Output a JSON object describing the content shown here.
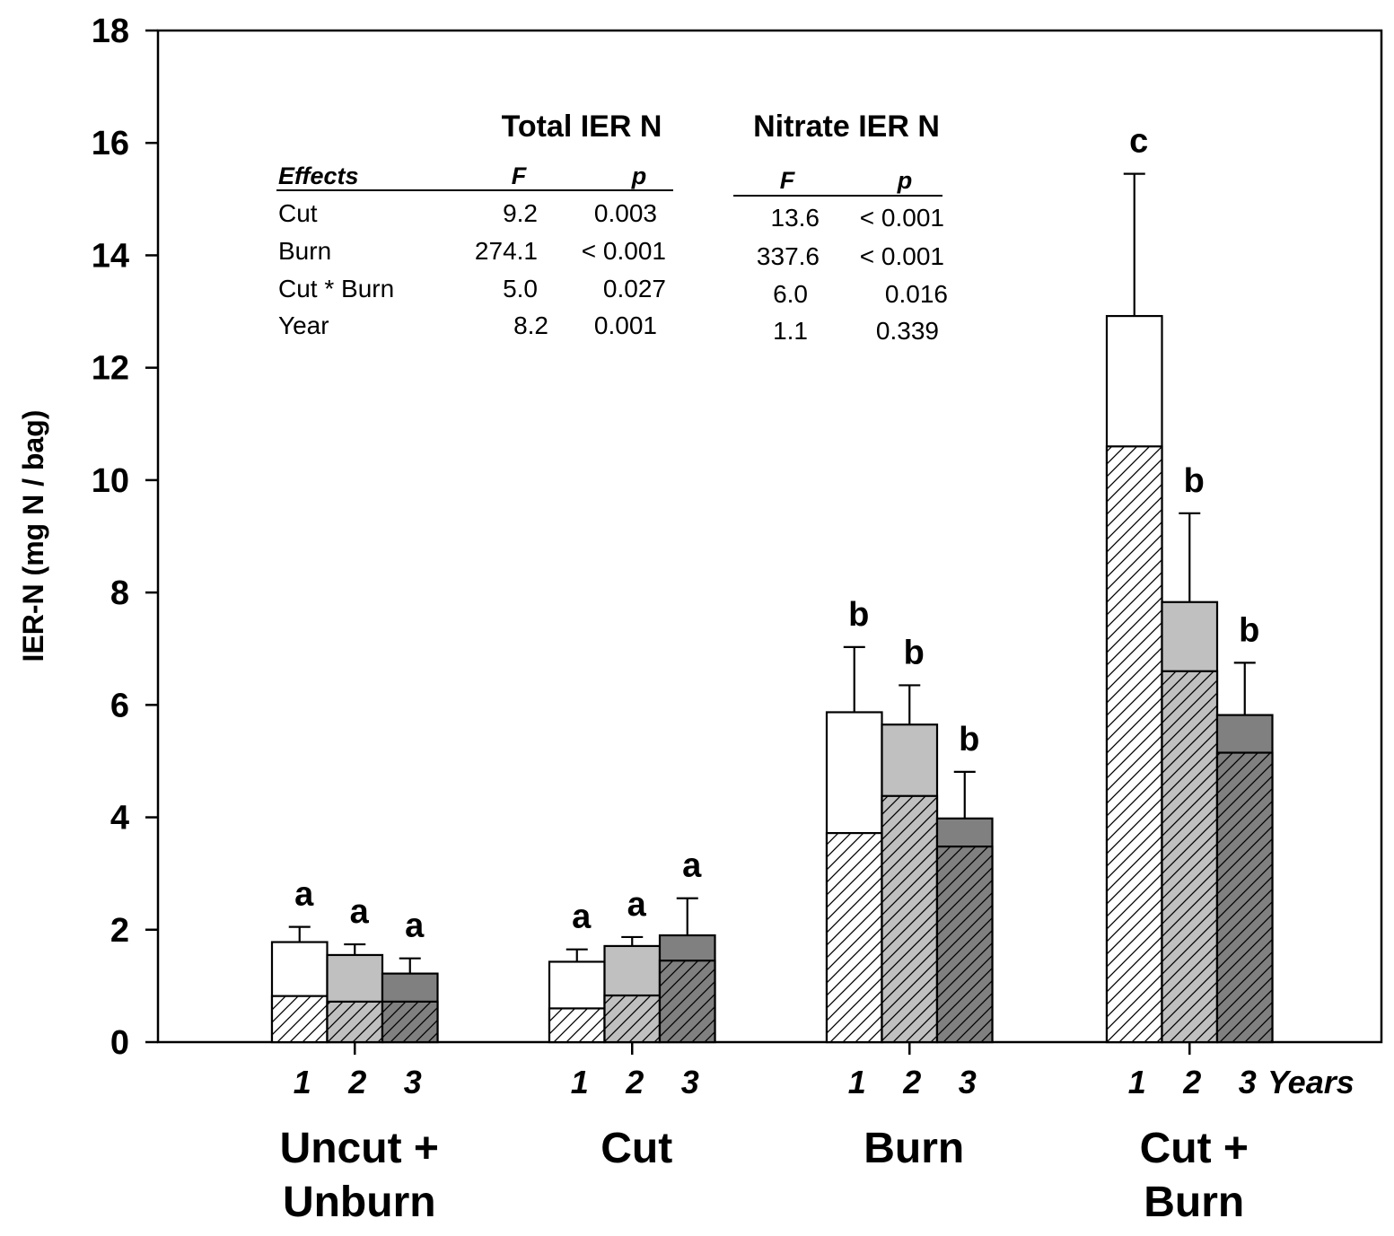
{
  "chart_data": {
    "type": "bar",
    "subtype": "stacked-with-error-bars",
    "ylabel": "IER-N (mg N / bag)",
    "ylim": [
      0,
      18
    ],
    "yticks": [
      0,
      2,
      4,
      6,
      8,
      10,
      12,
      14,
      16,
      18
    ],
    "year_suffix": "Years",
    "groups": [
      {
        "name": "Uncut +\nUnburn",
        "name_lines": [
          "Uncut +",
          "Unburn"
        ],
        "years": [
          {
            "year": "1",
            "total": 1.78,
            "nitrate": 0.82,
            "error": 0.27,
            "letter": "a"
          },
          {
            "year": "2",
            "total": 1.55,
            "nitrate": 0.72,
            "error": 0.19,
            "letter": "a"
          },
          {
            "year": "3",
            "total": 1.22,
            "nitrate": 0.72,
            "error": 0.27,
            "letter": "a"
          }
        ]
      },
      {
        "name": "Cut",
        "name_lines": [
          "Cut"
        ],
        "years": [
          {
            "year": "1",
            "total": 1.43,
            "nitrate": 0.6,
            "error": 0.22,
            "letter": "a"
          },
          {
            "year": "2",
            "total": 1.71,
            "nitrate": 0.83,
            "error": 0.16,
            "letter": "a"
          },
          {
            "year": "3",
            "total": 1.9,
            "nitrate": 1.45,
            "error": 0.66,
            "letter": "a"
          }
        ]
      },
      {
        "name": "Burn",
        "name_lines": [
          "Burn"
        ],
        "years": [
          {
            "year": "1",
            "total": 5.87,
            "nitrate": 3.72,
            "error": 1.16,
            "letter": "b"
          },
          {
            "year": "2",
            "total": 5.65,
            "nitrate": 4.38,
            "error": 0.7,
            "letter": "b"
          },
          {
            "year": "3",
            "total": 3.98,
            "nitrate": 3.48,
            "error": 0.83,
            "letter": "b"
          }
        ]
      },
      {
        "name": "Cut +\nBurn",
        "name_lines": [
          "Cut +",
          "Burn"
        ],
        "years": [
          {
            "year": "1",
            "total": 12.92,
            "nitrate": 10.6,
            "error": 2.53,
            "letter": "c"
          },
          {
            "year": "2",
            "total": 7.83,
            "nitrate": 6.6,
            "error": 1.58,
            "letter": "b"
          },
          {
            "year": "3",
            "total": 5.82,
            "nitrate": 5.15,
            "error": 0.93,
            "letter": "b"
          }
        ]
      }
    ],
    "colors": {
      "year1": "#ffffff",
      "year2": "#c0c0c0",
      "year3": "#808080",
      "outline": "#000000"
    },
    "anova_table": {
      "headers": [
        "Total IER N",
        "Nitrate IER N"
      ],
      "subheaders": [
        "Effects",
        "F",
        "p",
        "F",
        "p"
      ],
      "rows": [
        [
          "Cut",
          "9.2",
          "0.003",
          "13.6",
          "< 0.001"
        ],
        [
          "Burn",
          "274.1",
          "< 0.001",
          "337.6",
          "< 0.001"
        ],
        [
          "Cut * Burn",
          "5.0",
          "0.027",
          "6.0",
          "0.016"
        ],
        [
          "Year",
          "8.2",
          "0.001",
          "1.1",
          "0.339"
        ]
      ]
    }
  }
}
